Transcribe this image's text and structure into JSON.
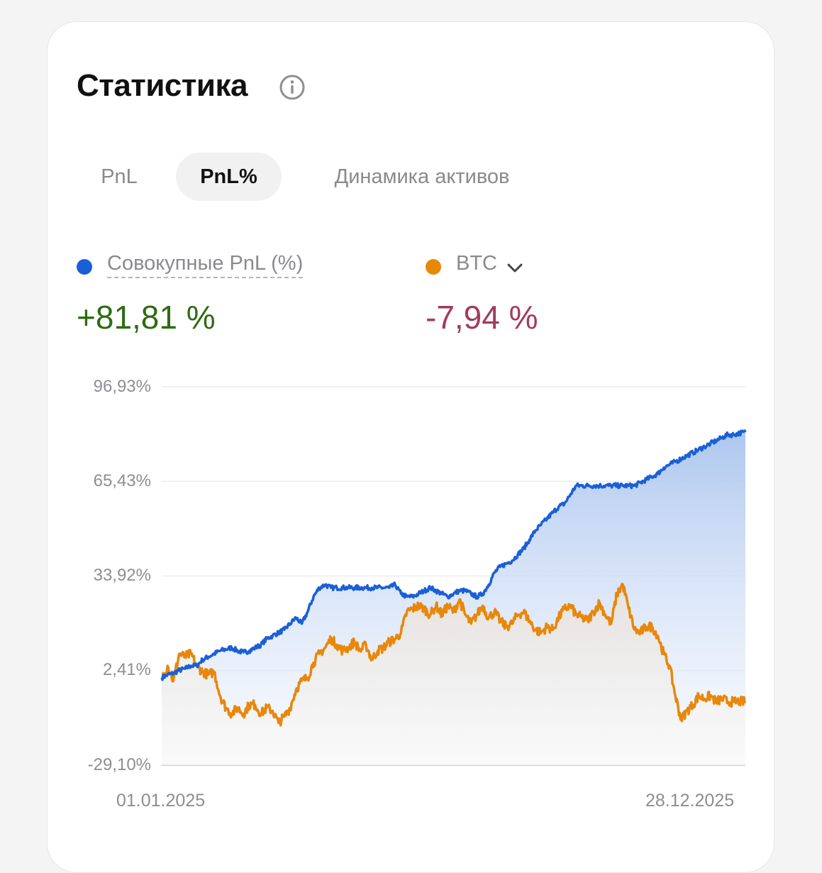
{
  "header": {
    "title": "Статистика",
    "info_icon": "info-circle-icon"
  },
  "tabs": [
    {
      "label": "PnL",
      "active": false
    },
    {
      "label": "PnL%",
      "active": true
    },
    {
      "label": "Динамика активов",
      "active": false
    }
  ],
  "legend": [
    {
      "label": "Совокупные PnL (%)",
      "value": "+81,81 %",
      "dot_color": "#1a5fd6",
      "value_color": "#2e6b12"
    },
    {
      "label": "BTC",
      "value": "-7,94 %",
      "dot_color": "#e8870a",
      "value_color": "#a33b5e",
      "dropdown_icon": "chevron-down-icon"
    }
  ],
  "chart_data": {
    "type": "area",
    "x_start_label": "01.01.2025",
    "x_end_label": "28.12.2025",
    "y_ticks": [
      "96,93%",
      "65,43%",
      "33,92%",
      "2,41%",
      "-29,10%"
    ],
    "ylim": [
      -29.1,
      96.93
    ],
    "grid": true,
    "series": [
      {
        "name": "Совокупные PnL (%)",
        "color": "#1a5fd6",
        "x": [
          0,
          0.01,
          0.02,
          0.03,
          0.04,
          0.05,
          0.06,
          0.07,
          0.08,
          0.09,
          0.1,
          0.11,
          0.12,
          0.13,
          0.14,
          0.15,
          0.16,
          0.17,
          0.18,
          0.19,
          0.2,
          0.21,
          0.22,
          0.23,
          0.24,
          0.25,
          0.26,
          0.27,
          0.28,
          0.29,
          0.3,
          0.31,
          0.32,
          0.33,
          0.34,
          0.35,
          0.36,
          0.37,
          0.38,
          0.39,
          0.4,
          0.41,
          0.42,
          0.43,
          0.44,
          0.45,
          0.46,
          0.47,
          0.48,
          0.49,
          0.5,
          0.51,
          0.52,
          0.53,
          0.54,
          0.55,
          0.56,
          0.57,
          0.58,
          0.59,
          0.6,
          0.61,
          0.62,
          0.63,
          0.64,
          0.65,
          0.66,
          0.67,
          0.68,
          0.69,
          0.7,
          0.71,
          0.72,
          0.73,
          0.74,
          0.75,
          0.76,
          0.77,
          0.78,
          0.79,
          0.8,
          0.81,
          0.82,
          0.83,
          0.84,
          0.85,
          0.86,
          0.87,
          0.88,
          0.89,
          0.9,
          0.91,
          0.92,
          0.93,
          0.94,
          0.95,
          0.96,
          0.97,
          0.98,
          0.99,
          1
        ],
        "values": [
          0,
          1,
          1.5,
          2.5,
          3,
          4,
          4,
          6,
          7,
          8,
          9,
          9.5,
          10,
          9,
          8.5,
          9,
          10,
          11,
          13,
          14,
          15,
          16,
          18,
          20,
          18,
          22,
          27,
          30,
          31,
          30,
          30,
          30,
          30,
          30,
          30,
          30,
          30,
          30,
          30,
          30,
          31,
          28,
          27,
          27,
          28,
          29,
          30,
          29,
          28,
          27,
          28,
          29,
          29,
          28,
          27,
          28,
          31,
          35,
          37,
          38,
          39,
          41,
          43,
          46,
          49,
          51,
          53,
          55,
          57,
          58,
          61,
          64,
          64,
          64,
          64,
          64,
          64,
          64,
          64,
          64,
          64,
          64,
          65,
          66,
          67,
          68,
          70,
          71,
          72,
          73,
          74,
          75,
          76,
          77,
          78,
          79,
          80,
          81,
          81,
          81.5,
          81.81
        ]
      },
      {
        "name": "BTC",
        "color": "#e8870a",
        "x": [
          0,
          0.01,
          0.02,
          0.03,
          0.04,
          0.05,
          0.06,
          0.07,
          0.08,
          0.09,
          0.1,
          0.11,
          0.12,
          0.13,
          0.14,
          0.15,
          0.16,
          0.17,
          0.18,
          0.19,
          0.2,
          0.21,
          0.22,
          0.23,
          0.24,
          0.25,
          0.26,
          0.27,
          0.28,
          0.29,
          0.3,
          0.31,
          0.32,
          0.33,
          0.34,
          0.35,
          0.36,
          0.37,
          0.38,
          0.39,
          0.4,
          0.41,
          0.42,
          0.43,
          0.44,
          0.45,
          0.46,
          0.47,
          0.48,
          0.49,
          0.5,
          0.51,
          0.52,
          0.53,
          0.54,
          0.55,
          0.56,
          0.57,
          0.58,
          0.59,
          0.6,
          0.61,
          0.62,
          0.63,
          0.64,
          0.65,
          0.66,
          0.67,
          0.68,
          0.69,
          0.7,
          0.71,
          0.72,
          0.73,
          0.74,
          0.75,
          0.76,
          0.77,
          0.78,
          0.79,
          0.8,
          0.81,
          0.82,
          0.83,
          0.84,
          0.85,
          0.86,
          0.87,
          0.88,
          0.89,
          0.9,
          0.91,
          0.92,
          0.93,
          0.94,
          0.95,
          0.96,
          0.97,
          0.98,
          0.99,
          1
        ],
        "values": [
          0,
          4,
          -1,
          8,
          7,
          8,
          4,
          2,
          1,
          2,
          -6,
          -10,
          -12,
          -10,
          -12,
          -9,
          -9,
          -12,
          -10,
          -11,
          -15,
          -13,
          -10,
          -4,
          -1,
          0,
          5,
          8,
          10,
          13,
          11,
          9,
          10,
          12,
          9,
          11,
          6,
          9,
          10,
          12,
          13,
          15,
          22,
          23,
          24,
          23,
          21,
          24,
          21,
          24,
          22,
          26,
          21,
          18,
          21,
          24,
          20,
          22,
          19,
          17,
          18,
          21,
          22,
          19,
          16,
          15,
          17,
          16,
          20,
          23,
          24,
          21,
          20,
          19,
          22,
          25,
          21,
          18,
          28,
          31,
          23,
          16,
          15,
          17,
          17,
          14,
          8,
          4,
          -6,
          -14,
          -11,
          -9,
          -6,
          -7,
          -6,
          -8,
          -7,
          -8,
          -8,
          -7.9,
          -7.94
        ]
      }
    ]
  }
}
